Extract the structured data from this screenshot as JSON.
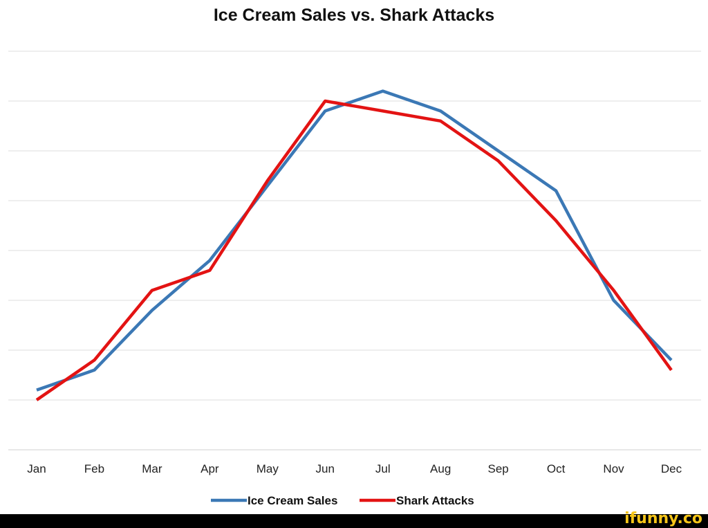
{
  "chart_data": {
    "type": "line",
    "title": "Ice Cream Sales vs. Shark Attacks",
    "xlabel": "",
    "ylabel": "",
    "categories": [
      "Jan",
      "Feb",
      "Mar",
      "Apr",
      "May",
      "Jun",
      "Jul",
      "Aug",
      "Sep",
      "Oct",
      "Nov",
      "Dec"
    ],
    "y_tick_labels_shown": false,
    "ylim": [
      0,
      8
    ],
    "grid": true,
    "legend": "bottom",
    "series": [
      {
        "name": "Ice Cream Sales",
        "color": "#3b78b5",
        "values": [
          1.2,
          1.6,
          2.8,
          3.8,
          5.3,
          6.8,
          7.2,
          6.8,
          6.0,
          5.2,
          3.0,
          1.8
        ]
      },
      {
        "name": "Shark Attacks",
        "color": "#e31313",
        "values": [
          1.0,
          1.8,
          3.2,
          3.6,
          5.4,
          7.0,
          6.8,
          6.6,
          5.8,
          4.6,
          3.2,
          1.6
        ]
      }
    ]
  },
  "watermark": "ifunny.co"
}
